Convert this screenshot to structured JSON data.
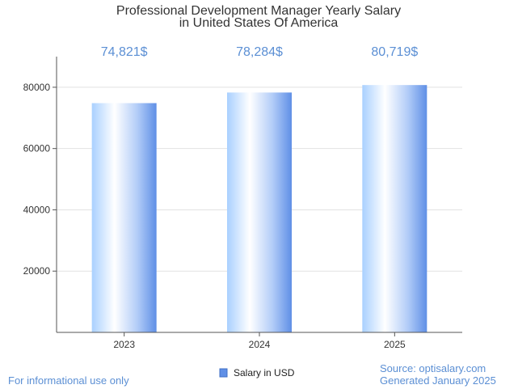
{
  "chart_data": {
    "type": "bar",
    "title_lines": [
      "Professional Development Manager Yearly Salary",
      "in United States Of America"
    ],
    "categories": [
      "2023",
      "2024",
      "2025"
    ],
    "series": [
      {
        "name": "Salary in USD",
        "values": [
          74821,
          78284,
          80719
        ]
      }
    ],
    "value_labels": [
      "74,821$",
      "78,284$",
      "80,719$"
    ],
    "y_ticks": [
      20000,
      40000,
      60000,
      80000
    ],
    "y_tick_labels": [
      "20000",
      "40000",
      "60000",
      "80000"
    ],
    "ylim": [
      0,
      90000
    ],
    "grid": true,
    "legend_position": "bottom-center"
  },
  "legend": {
    "label": "Salary in USD"
  },
  "footer": {
    "left": "For informational use only",
    "source": "Source: optisalary.com",
    "generated": "Generated January 2025"
  },
  "colors": {
    "bar_light": "#ffffff",
    "bar_mid": "#b8d8ff",
    "bar_dark": "#5f8fe6",
    "value_label": "#5b8fd4",
    "grid": "#e2e2e2",
    "axis": "#555555"
  }
}
